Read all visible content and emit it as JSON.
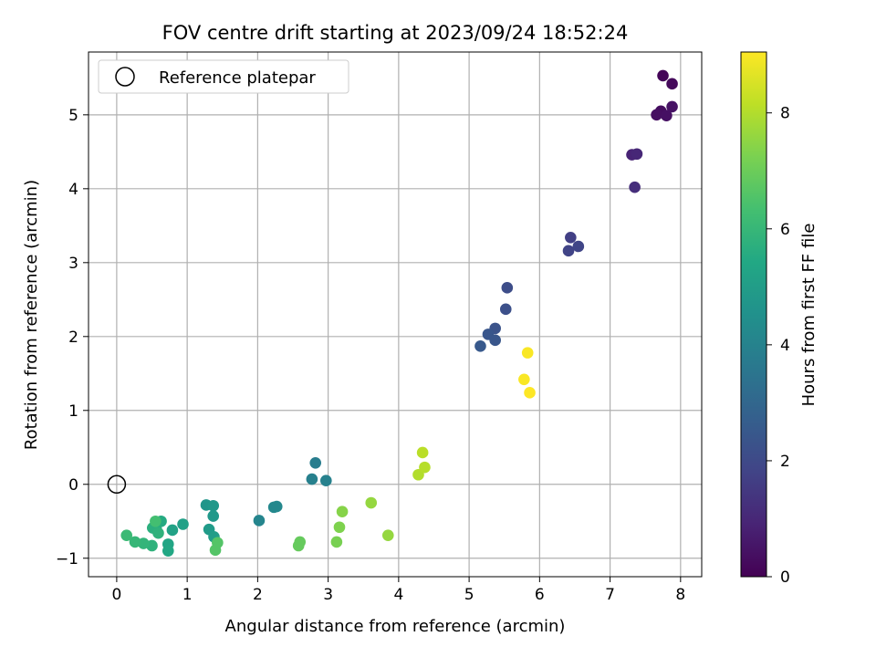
{
  "chart_data": {
    "type": "scatter",
    "title": "FOV centre drift starting at 2023/09/24 18:52:24",
    "xlabel": "Angular distance from reference (arcmin)",
    "ylabel": "Rotation from reference (arcmin)",
    "xlim": [
      -0.4,
      8.3
    ],
    "ylim": [
      -1.25,
      5.85
    ],
    "xticks": [
      "0",
      "1",
      "2",
      "3",
      "4",
      "5",
      "6",
      "7",
      "8"
    ],
    "yticks": [
      "−1",
      "0",
      "1",
      "2",
      "3",
      "4",
      "5"
    ],
    "grid": true,
    "legend_position": "top-left",
    "legend": [
      {
        "label": "Reference platepar",
        "marker": "open-circle"
      }
    ],
    "reference_point": {
      "x": 0.0,
      "y": 0.0
    },
    "colorbar": {
      "label": "Hours from first FF file",
      "ticks": [
        "0",
        "2",
        "4",
        "6",
        "8"
      ],
      "range": [
        0,
        9.05
      ],
      "colormap": "viridis"
    },
    "points": [
      {
        "x": 7.75,
        "y": 5.53,
        "c": 0.1
      },
      {
        "x": 7.88,
        "y": 5.42,
        "c": 0.2
      },
      {
        "x": 7.72,
        "y": 5.05,
        "c": 0.3
      },
      {
        "x": 7.66,
        "y": 5.0,
        "c": 0.35
      },
      {
        "x": 7.8,
        "y": 4.99,
        "c": 0.4
      },
      {
        "x": 7.88,
        "y": 5.11,
        "c": 0.45
      },
      {
        "x": 7.31,
        "y": 4.46,
        "c": 0.9
      },
      {
        "x": 7.38,
        "y": 4.47,
        "c": 1.0
      },
      {
        "x": 7.35,
        "y": 4.02,
        "c": 1.2
      },
      {
        "x": 6.44,
        "y": 3.34,
        "c": 1.7
      },
      {
        "x": 6.41,
        "y": 3.16,
        "c": 1.8
      },
      {
        "x": 6.55,
        "y": 3.22,
        "c": 1.85
      },
      {
        "x": 5.54,
        "y": 2.66,
        "c": 2.1
      },
      {
        "x": 5.52,
        "y": 2.37,
        "c": 2.2
      },
      {
        "x": 5.37,
        "y": 2.11,
        "c": 2.3
      },
      {
        "x": 5.27,
        "y": 2.03,
        "c": 2.4
      },
      {
        "x": 5.37,
        "y": 1.95,
        "c": 2.4
      },
      {
        "x": 5.16,
        "y": 1.87,
        "c": 2.5
      },
      {
        "x": 2.82,
        "y": 0.29,
        "c": 3.8
      },
      {
        "x": 2.77,
        "y": 0.07,
        "c": 3.9
      },
      {
        "x": 2.97,
        "y": 0.05,
        "c": 3.95
      },
      {
        "x": 2.02,
        "y": -0.49,
        "c": 4.1
      },
      {
        "x": 2.23,
        "y": -0.31,
        "c": 4.2
      },
      {
        "x": 2.27,
        "y": -0.3,
        "c": 4.2
      },
      {
        "x": 1.27,
        "y": -0.28,
        "c": 4.7
      },
      {
        "x": 1.37,
        "y": -0.29,
        "c": 4.8
      },
      {
        "x": 1.37,
        "y": -0.43,
        "c": 4.8
      },
      {
        "x": 1.31,
        "y": -0.61,
        "c": 4.9
      },
      {
        "x": 1.38,
        "y": -0.71,
        "c": 5.0
      },
      {
        "x": 0.94,
        "y": -0.54,
        "c": 5.1
      },
      {
        "x": 0.79,
        "y": -0.62,
        "c": 5.2
      },
      {
        "x": 0.73,
        "y": -0.81,
        "c": 5.3
      },
      {
        "x": 0.73,
        "y": -0.9,
        "c": 5.4
      },
      {
        "x": 0.63,
        "y": -0.5,
        "c": 5.5
      },
      {
        "x": 0.56,
        "y": -0.6,
        "c": 5.6
      },
      {
        "x": 0.51,
        "y": -0.59,
        "c": 5.7
      },
      {
        "x": 0.59,
        "y": -0.66,
        "c": 5.8
      },
      {
        "x": 0.5,
        "y": -0.83,
        "c": 5.8
      },
      {
        "x": 0.38,
        "y": -0.8,
        "c": 5.9
      },
      {
        "x": 0.26,
        "y": -0.78,
        "c": 6.0
      },
      {
        "x": 0.14,
        "y": -0.69,
        "c": 6.1
      },
      {
        "x": 0.55,
        "y": -0.5,
        "c": 6.3
      },
      {
        "x": 1.43,
        "y": -0.79,
        "c": 6.6
      },
      {
        "x": 1.4,
        "y": -0.89,
        "c": 6.6
      },
      {
        "x": 2.6,
        "y": -0.78,
        "c": 6.9
      },
      {
        "x": 2.58,
        "y": -0.83,
        "c": 6.9
      },
      {
        "x": 3.12,
        "y": -0.78,
        "c": 7.2
      },
      {
        "x": 3.16,
        "y": -0.58,
        "c": 7.3
      },
      {
        "x": 3.2,
        "y": -0.37,
        "c": 7.4
      },
      {
        "x": 3.61,
        "y": -0.25,
        "c": 7.6
      },
      {
        "x": 3.85,
        "y": -0.69,
        "c": 7.6
      },
      {
        "x": 4.28,
        "y": 0.13,
        "c": 8.0
      },
      {
        "x": 4.37,
        "y": 0.23,
        "c": 8.05
      },
      {
        "x": 4.34,
        "y": 0.43,
        "c": 8.1
      },
      {
        "x": 5.83,
        "y": 1.78,
        "c": 9.0
      },
      {
        "x": 5.78,
        "y": 1.42,
        "c": 9.0
      },
      {
        "x": 5.86,
        "y": 1.24,
        "c": 9.05
      }
    ]
  }
}
